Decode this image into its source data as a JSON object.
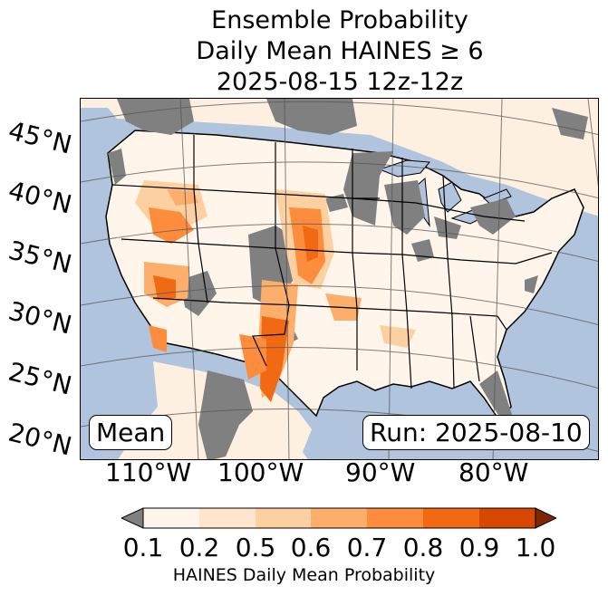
{
  "title": {
    "line1": "Ensemble Probability",
    "line2": "Daily Mean HAINES ≥ 6",
    "line3": "2025-08-15 12z-12z"
  },
  "map": {
    "lat_labels": [
      "45°N",
      "40°N",
      "35°N",
      "30°N",
      "25°N",
      "20°N"
    ],
    "lon_labels": [
      "110°W",
      "100°W",
      "90°W",
      "80°W"
    ],
    "stat_label": "Mean",
    "run_label": "Run: 2025-08-10",
    "colors": {
      "ocean": "#b0c4de",
      "no_data": "#808080",
      "land_low": "#fff5eb",
      "border": "#000000",
      "grid": "#555555"
    }
  },
  "colorbar": {
    "ticks": [
      "0.1",
      "0.2",
      "0.5",
      "0.6",
      "0.7",
      "0.8",
      "0.9",
      "1.0"
    ],
    "colors": [
      "#fff5eb",
      "#fee6ce",
      "#fdd0a2",
      "#fdae6b",
      "#fd8d3c",
      "#f16913",
      "#d94801",
      "#a63603"
    ],
    "under_color": "#808080",
    "over_color": "#7f2704",
    "label": "HAINES Daily Mean Probability"
  }
}
